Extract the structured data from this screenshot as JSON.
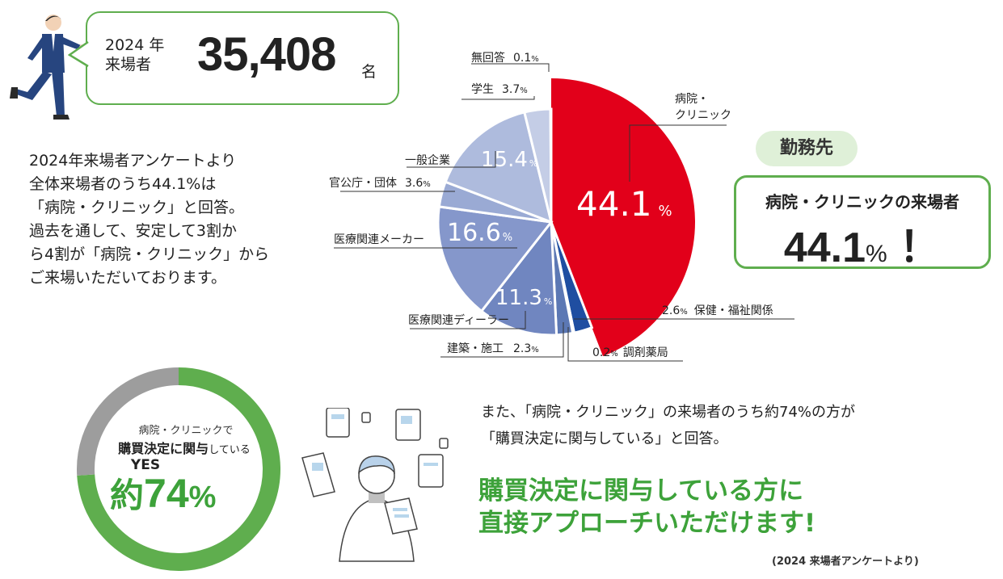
{
  "header": {
    "year_label_1": "2024 年",
    "year_label_2": "来場者",
    "attendee_count": "35,408",
    "attendee_unit": "名"
  },
  "intro_lines": [
    "2024年来場者アンケートより",
    "全体来場者のうち44.1%は",
    "「病院・クリニック」と回答。",
    "過去を通して、安定して3割か",
    "ら4割が「病院・クリニック」から",
    "ご来場いただいております。"
  ],
  "workplace": {
    "pill": "勤務先",
    "result_label": "病院・クリニックの来場者",
    "result_value": "44.1",
    "result_unit": "%",
    "result_exclaim": "！"
  },
  "colors": {
    "accent_green": "#3da23a",
    "border_green": "#5fae4e",
    "hospital_red": "#e2001a",
    "blue_dark": "#1f4ea1",
    "grey": "#9d9d9d"
  },
  "chart_data": [
    {
      "type": "pie",
      "title": "",
      "slices": [
        {
          "label": "病院・クリニック",
          "value": 44.1,
          "color": "#e2001a"
        },
        {
          "label": "保健・福祉関係",
          "value": 2.6,
          "color": "#1f4ea1"
        },
        {
          "label": "調剤薬局",
          "value": 0.2,
          "color": "#3b62ad"
        },
        {
          "label": "建築・施工",
          "value": 2.3,
          "color": "#5c78b4"
        },
        {
          "label": "医療関連ディーラー",
          "value": 11.3,
          "color": "#7086c0"
        },
        {
          "label": "医療関連メーカー",
          "value": 16.6,
          "color": "#8597cb"
        },
        {
          "label": "官公庁・団体",
          "value": 3.6,
          "color": "#9aaad4"
        },
        {
          "label": "一般企業",
          "value": 15.4,
          "color": "#aebbdd"
        },
        {
          "label": "学生",
          "value": 3.7,
          "color": "#c4cde6"
        },
        {
          "label": "無回答",
          "value": 0.1,
          "color": "#dde2f0"
        }
      ],
      "value_labels": [
        "44.1",
        "16.6",
        "15.4",
        "11.3"
      ],
      "pct_sign": "%",
      "callouts": [
        {
          "name": "hospital",
          "lines": [
            "病院・",
            "クリニック"
          ]
        },
        {
          "name": "welfare",
          "value": "2.6",
          "label": "保健・福祉関係"
        },
        {
          "name": "pharmacy",
          "value": "0.2",
          "label": "調剤薬局"
        },
        {
          "name": "construction",
          "label": "建築・施工",
          "value": "2.3"
        },
        {
          "name": "dealer",
          "label": "医療関連ディーラー"
        },
        {
          "name": "maker",
          "label": "医療関連メーカー"
        },
        {
          "name": "government",
          "label": "官公庁・団体",
          "value": "3.6"
        },
        {
          "name": "company",
          "label": "一般企業"
        },
        {
          "name": "student",
          "label": "学生",
          "value": "3.7"
        },
        {
          "name": "noanswer",
          "label": "無回答",
          "value": "0.1"
        }
      ]
    },
    {
      "type": "pie",
      "title": "",
      "slices": [
        {
          "label": "YES",
          "value": 74,
          "color": "#5fae4e"
        },
        {
          "label": "",
          "value": 26,
          "color": "#9d9d9d"
        }
      ]
    }
  ],
  "donut": {
    "sub": "病院・クリニックで",
    "main_1": "購買決定に関与",
    "main_2": "している",
    "yes": "YES",
    "yaku": "約",
    "value": "74",
    "sign": "%"
  },
  "purchase": {
    "line1": "また、「病院・クリニック」の来場者のうち約74%の方が",
    "line2": "「購買決定に関与している」と回答。",
    "highlight1": "購買決定に関与している方に",
    "highlight2": "直接アプローチいただけます!",
    "source": "(2024 来場者アンケートより)"
  }
}
